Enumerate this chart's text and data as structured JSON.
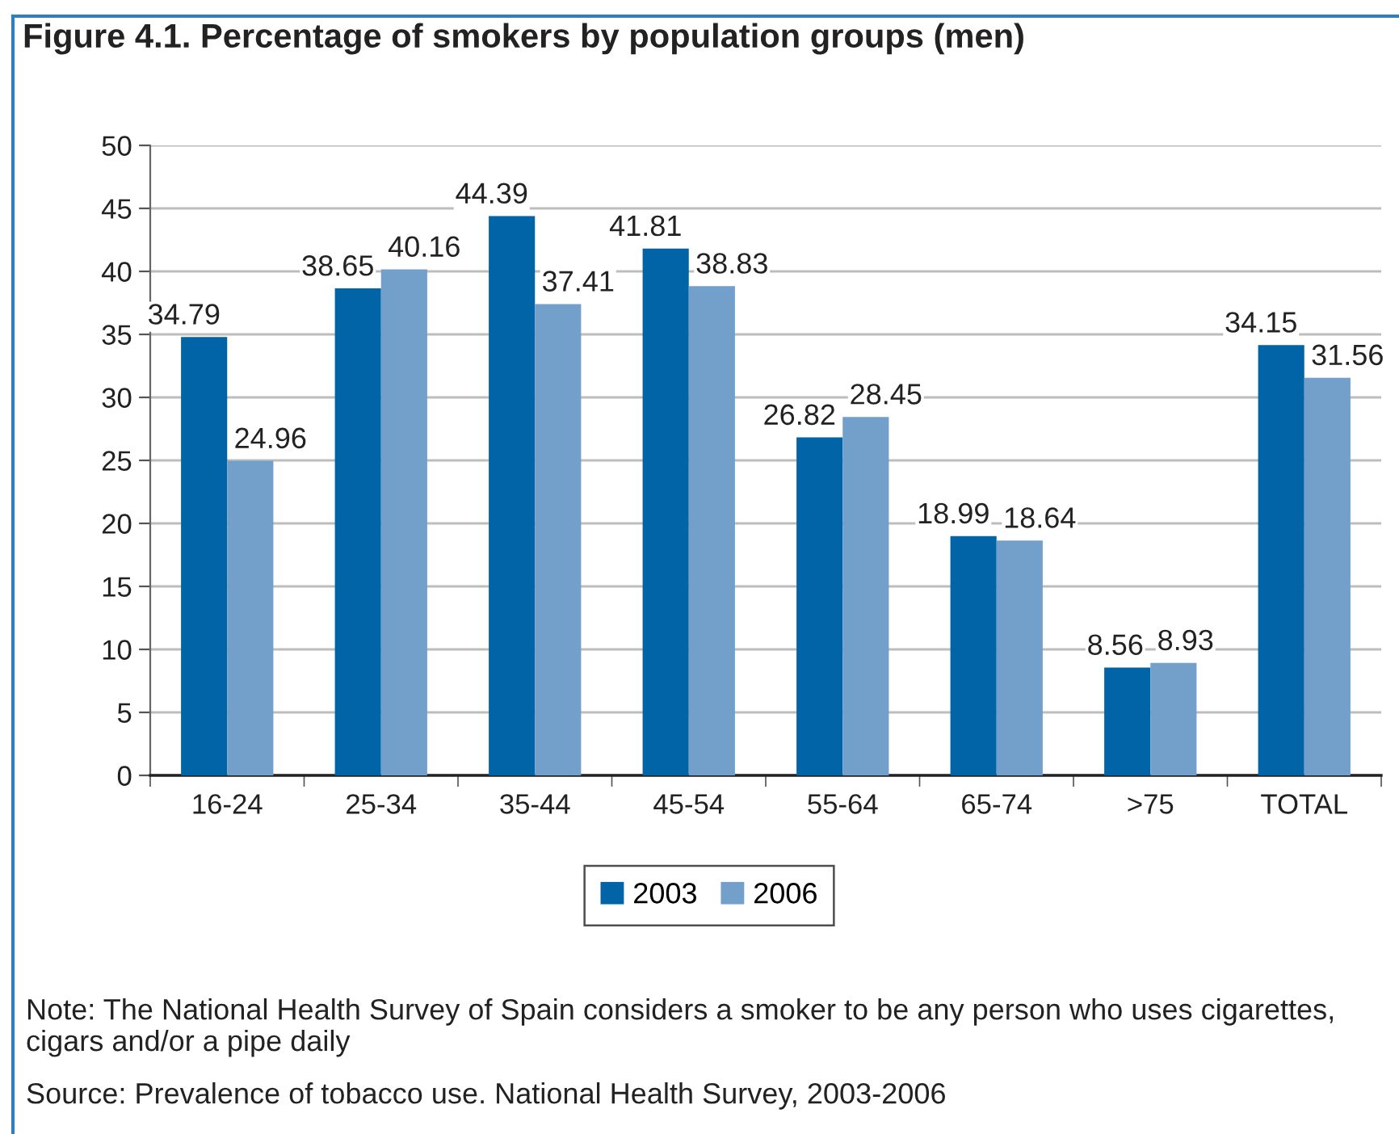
{
  "chart_data": {
    "type": "bar",
    "title": "Figure 4.1. Percentage of smokers by population groups (men)",
    "categories": [
      "16-24",
      "25-34",
      "35-44",
      "45-54",
      "55-64",
      "65-74",
      ">75",
      "TOTAL"
    ],
    "series": [
      {
        "name": "2003",
        "color": "#0064a7",
        "values": [
          34.79,
          38.65,
          44.39,
          41.81,
          26.82,
          18.99,
          8.56,
          34.15
        ]
      },
      {
        "name": "2006",
        "color": "#739fcb",
        "values": [
          24.96,
          40.16,
          37.41,
          38.83,
          28.45,
          18.64,
          8.93,
          31.56
        ]
      }
    ],
    "ylim": [
      0,
      50
    ],
    "yticks": [
      0,
      5,
      10,
      15,
      20,
      25,
      30,
      35,
      40,
      45,
      50
    ],
    "grid": "y",
    "legend": "bottom",
    "data_labels": true,
    "annotations": [
      "Note: The National Health Survey of Spain considers a smoker to be any person who uses cigarettes, cigars and/or a pipe daily",
      "Source: Prevalence of tobacco use. National Health Survey, 2003-2006"
    ]
  }
}
